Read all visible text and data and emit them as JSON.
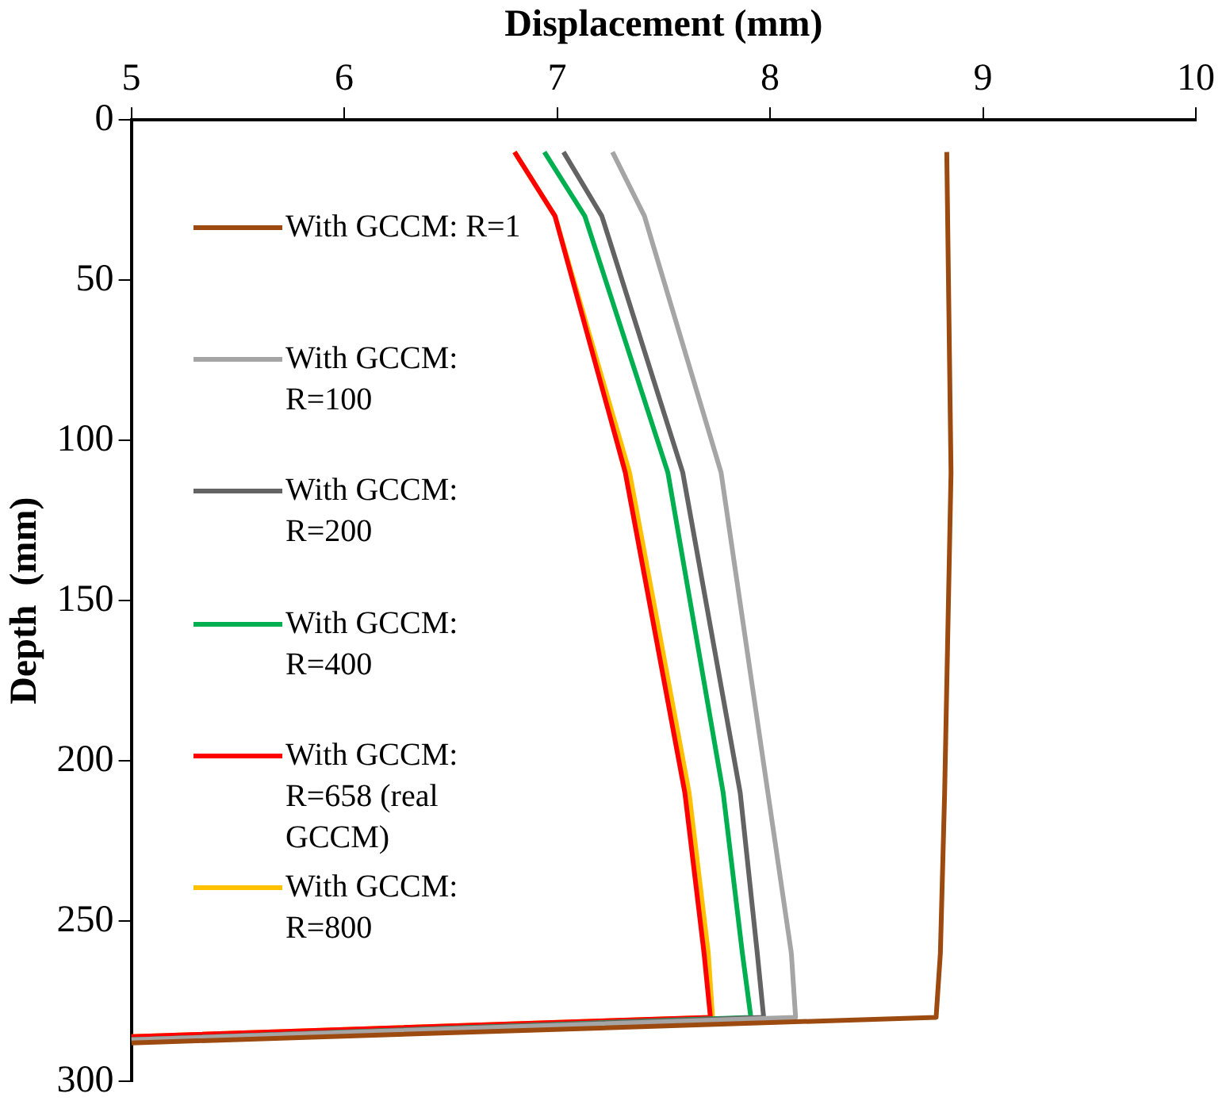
{
  "chart_data": {
    "type": "line",
    "xlabel": "Displacement (mm)",
    "ylabel": "Depth  (mm)",
    "xlim": [
      5,
      10
    ],
    "xticks": [
      5,
      6,
      7,
      8,
      9,
      10
    ],
    "ylim": [
      300,
      0
    ],
    "yticks": [
      0,
      50,
      100,
      150,
      200,
      250,
      300
    ],
    "grid": false,
    "legend": "left",
    "marker": "none",
    "line_style": "solid",
    "series": [
      {
        "name": "With GCCM: R=1",
        "color": "#9c4a10",
        "x": [
          8.83,
          8.85,
          8.82,
          8.8,
          8.78,
          5.0
        ],
        "values": [
          10,
          110,
          210,
          260,
          280,
          288
        ]
      },
      {
        "name": "With GCCM: R=100",
        "color": "#a5a5a5",
        "x": [
          7.26,
          7.41,
          7.77,
          7.99,
          8.1,
          8.12,
          5.0
        ],
        "values": [
          10,
          30,
          110,
          210,
          260,
          280,
          287
        ]
      },
      {
        "name": "With GCCM: R=200",
        "color": "#636363",
        "x": [
          7.03,
          7.21,
          7.59,
          7.86,
          7.94,
          7.97,
          5.0
        ],
        "values": [
          10,
          30,
          110,
          210,
          260,
          280,
          287
        ]
      },
      {
        "name": "With GCCM: R=400",
        "color": "#00b050",
        "x": [
          6.94,
          7.13,
          7.52,
          7.78,
          7.87,
          7.91,
          5.0
        ],
        "values": [
          10,
          30,
          110,
          210,
          260,
          280,
          287
        ]
      },
      {
        "name": "With GCCM: R=658 (real GCCM)",
        "color": "#ff0000",
        "x": [
          6.8,
          6.99,
          7.32,
          7.6,
          7.69,
          7.72,
          5.0
        ],
        "values": [
          10,
          30,
          110,
          210,
          260,
          280,
          286
        ]
      },
      {
        "name": "With GCCM: R=800",
        "color": "#ffc000",
        "x": [
          6.8,
          6.99,
          7.34,
          7.62,
          7.71,
          7.73,
          5.0
        ],
        "values": [
          10,
          30,
          110,
          210,
          260,
          280,
          286
        ]
      }
    ]
  }
}
